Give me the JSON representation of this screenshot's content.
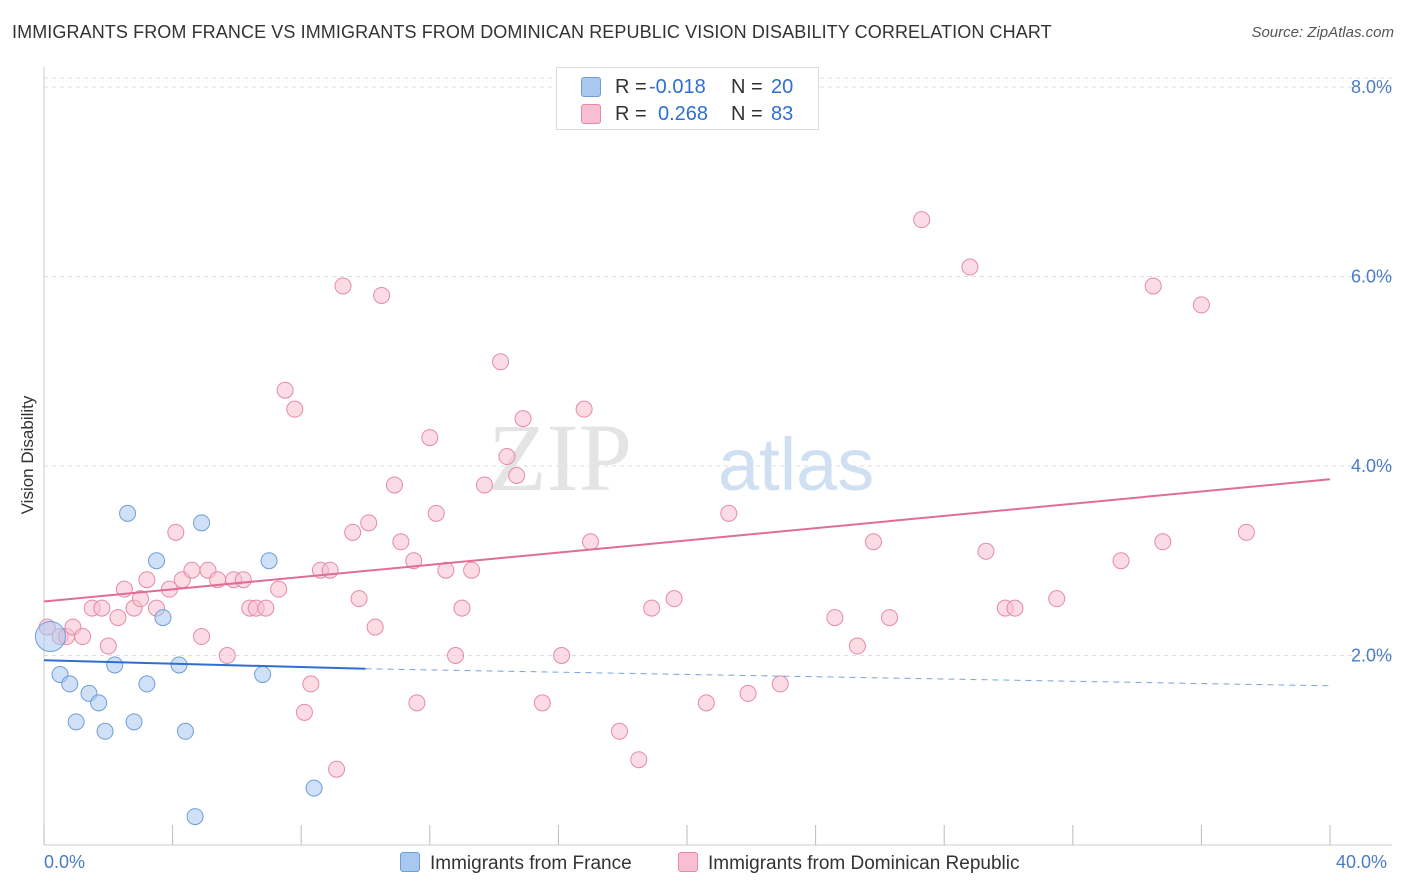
{
  "header": {
    "title": "IMMIGRANTS FROM FRANCE VS IMMIGRANTS FROM DOMINICAN REPUBLIC VISION DISABILITY CORRELATION CHART",
    "source": "Source: ZipAtlas.com"
  },
  "watermark": {
    "zip": "ZIP",
    "atlas": "atlas"
  },
  "legend": {
    "series1": {
      "r_label": "R =",
      "r_value": "-0.018",
      "n_label": "N =",
      "n_value": "20",
      "color": "#a9c8f0",
      "border": "#6d9ed8"
    },
    "series2": {
      "r_label": "R =",
      "r_value": "0.268",
      "n_label": "N =",
      "n_value": "83",
      "color": "#f7bfd0",
      "border": "#e58aa8"
    }
  },
  "bottom_legend": {
    "series1_label": "Immigrants from France",
    "series2_label": "Immigrants from Dominican Republic"
  },
  "chart_data": {
    "type": "scatter",
    "title": "IMMIGRANTS FROM FRANCE VS IMMIGRANTS FROM DOMINICAN REPUBLIC VISION DISABILITY CORRELATION CHART",
    "xlabel": "",
    "ylabel": "Vision Disability",
    "xlim": [
      0,
      40
    ],
    "ylim": [
      0,
      8
    ],
    "x_tick_labels": [
      "0.0%",
      "40.0%"
    ],
    "y_ticks": [
      2,
      4,
      6,
      8
    ],
    "y_tick_labels": [
      "2.0%",
      "4.0%",
      "6.0%",
      "8.0%"
    ],
    "grid": "horizontal dashed",
    "legend_position": "top-center",
    "series": [
      {
        "name": "Immigrants from France",
        "color": "#6d9ed8",
        "fill": "#a9c8f0",
        "points": [
          [
            0.2,
            2.2
          ],
          [
            0.5,
            1.8
          ],
          [
            0.8,
            1.7
          ],
          [
            1.0,
            1.3
          ],
          [
            1.4,
            1.6
          ],
          [
            1.7,
            1.5
          ],
          [
            1.9,
            1.2
          ],
          [
            2.2,
            1.9
          ],
          [
            2.6,
            3.5
          ],
          [
            2.8,
            1.3
          ],
          [
            3.2,
            1.7
          ],
          [
            3.5,
            3.0
          ],
          [
            3.7,
            2.4
          ],
          [
            4.2,
            1.9
          ],
          [
            4.4,
            1.2
          ],
          [
            4.7,
            0.3
          ],
          [
            4.9,
            3.4
          ],
          [
            6.8,
            1.8
          ],
          [
            7.0,
            3.0
          ],
          [
            8.4,
            0.6
          ]
        ],
        "trend": {
          "x0": 0,
          "y0": 1.95,
          "x1": 10,
          "y1": 1.86,
          "dash_x1": 40,
          "dash_y1": 1.68
        }
      },
      {
        "name": "Immigrants from Dominican Republic",
        "color": "#e58aa8",
        "fill": "#f7bfd0",
        "points": [
          [
            0.1,
            2.3
          ],
          [
            0.5,
            2.2
          ],
          [
            0.7,
            2.2
          ],
          [
            0.9,
            2.3
          ],
          [
            1.2,
            2.2
          ],
          [
            1.5,
            2.5
          ],
          [
            1.8,
            2.5
          ],
          [
            2.0,
            2.1
          ],
          [
            2.3,
            2.4
          ],
          [
            2.5,
            2.7
          ],
          [
            2.8,
            2.5
          ],
          [
            3.0,
            2.6
          ],
          [
            3.2,
            2.8
          ],
          [
            3.5,
            2.5
          ],
          [
            3.9,
            2.7
          ],
          [
            4.1,
            3.3
          ],
          [
            4.3,
            2.8
          ],
          [
            4.6,
            2.9
          ],
          [
            4.9,
            2.2
          ],
          [
            5.1,
            2.9
          ],
          [
            5.4,
            2.8
          ],
          [
            5.7,
            2.0
          ],
          [
            5.9,
            2.8
          ],
          [
            6.2,
            2.8
          ],
          [
            6.4,
            2.5
          ],
          [
            6.6,
            2.5
          ],
          [
            6.9,
            2.5
          ],
          [
            7.3,
            2.7
          ],
          [
            7.5,
            4.8
          ],
          [
            7.8,
            4.6
          ],
          [
            8.1,
            1.4
          ],
          [
            8.3,
            1.7
          ],
          [
            8.6,
            2.9
          ],
          [
            8.9,
            2.9
          ],
          [
            9.1,
            0.8
          ],
          [
            9.3,
            5.9
          ],
          [
            9.6,
            3.3
          ],
          [
            9.8,
            2.6
          ],
          [
            10.1,
            3.4
          ],
          [
            10.3,
            2.3
          ],
          [
            10.5,
            5.8
          ],
          [
            10.9,
            3.8
          ],
          [
            11.1,
            3.2
          ],
          [
            11.5,
            3.0
          ],
          [
            11.6,
            1.5
          ],
          [
            12.0,
            4.3
          ],
          [
            12.2,
            3.5
          ],
          [
            12.5,
            2.9
          ],
          [
            12.8,
            2.0
          ],
          [
            13.0,
            2.5
          ],
          [
            13.3,
            2.9
          ],
          [
            13.7,
            3.8
          ],
          [
            14.2,
            5.1
          ],
          [
            14.4,
            4.1
          ],
          [
            14.7,
            3.9
          ],
          [
            14.9,
            4.5
          ],
          [
            15.5,
            1.5
          ],
          [
            16.1,
            2.0
          ],
          [
            16.8,
            4.6
          ],
          [
            17.0,
            3.2
          ],
          [
            17.9,
            1.2
          ],
          [
            18.5,
            0.9
          ],
          [
            18.9,
            2.5
          ],
          [
            19.6,
            2.6
          ],
          [
            20.6,
            1.5
          ],
          [
            21.3,
            3.5
          ],
          [
            21.9,
            1.6
          ],
          [
            22.9,
            1.7
          ],
          [
            24.6,
            2.4
          ],
          [
            25.3,
            2.1
          ],
          [
            25.8,
            3.2
          ],
          [
            26.3,
            2.4
          ],
          [
            27.3,
            6.6
          ],
          [
            28.8,
            6.1
          ],
          [
            29.3,
            3.1
          ],
          [
            29.9,
            2.5
          ],
          [
            30.2,
            2.5
          ],
          [
            31.5,
            2.6
          ],
          [
            33.5,
            3.0
          ],
          [
            34.5,
            5.9
          ],
          [
            34.8,
            3.2
          ],
          [
            36.0,
            5.7
          ],
          [
            37.4,
            3.3
          ]
        ],
        "trend": {
          "x0": 0,
          "y0": 2.57,
          "x1": 40,
          "y1": 3.86
        }
      }
    ]
  }
}
